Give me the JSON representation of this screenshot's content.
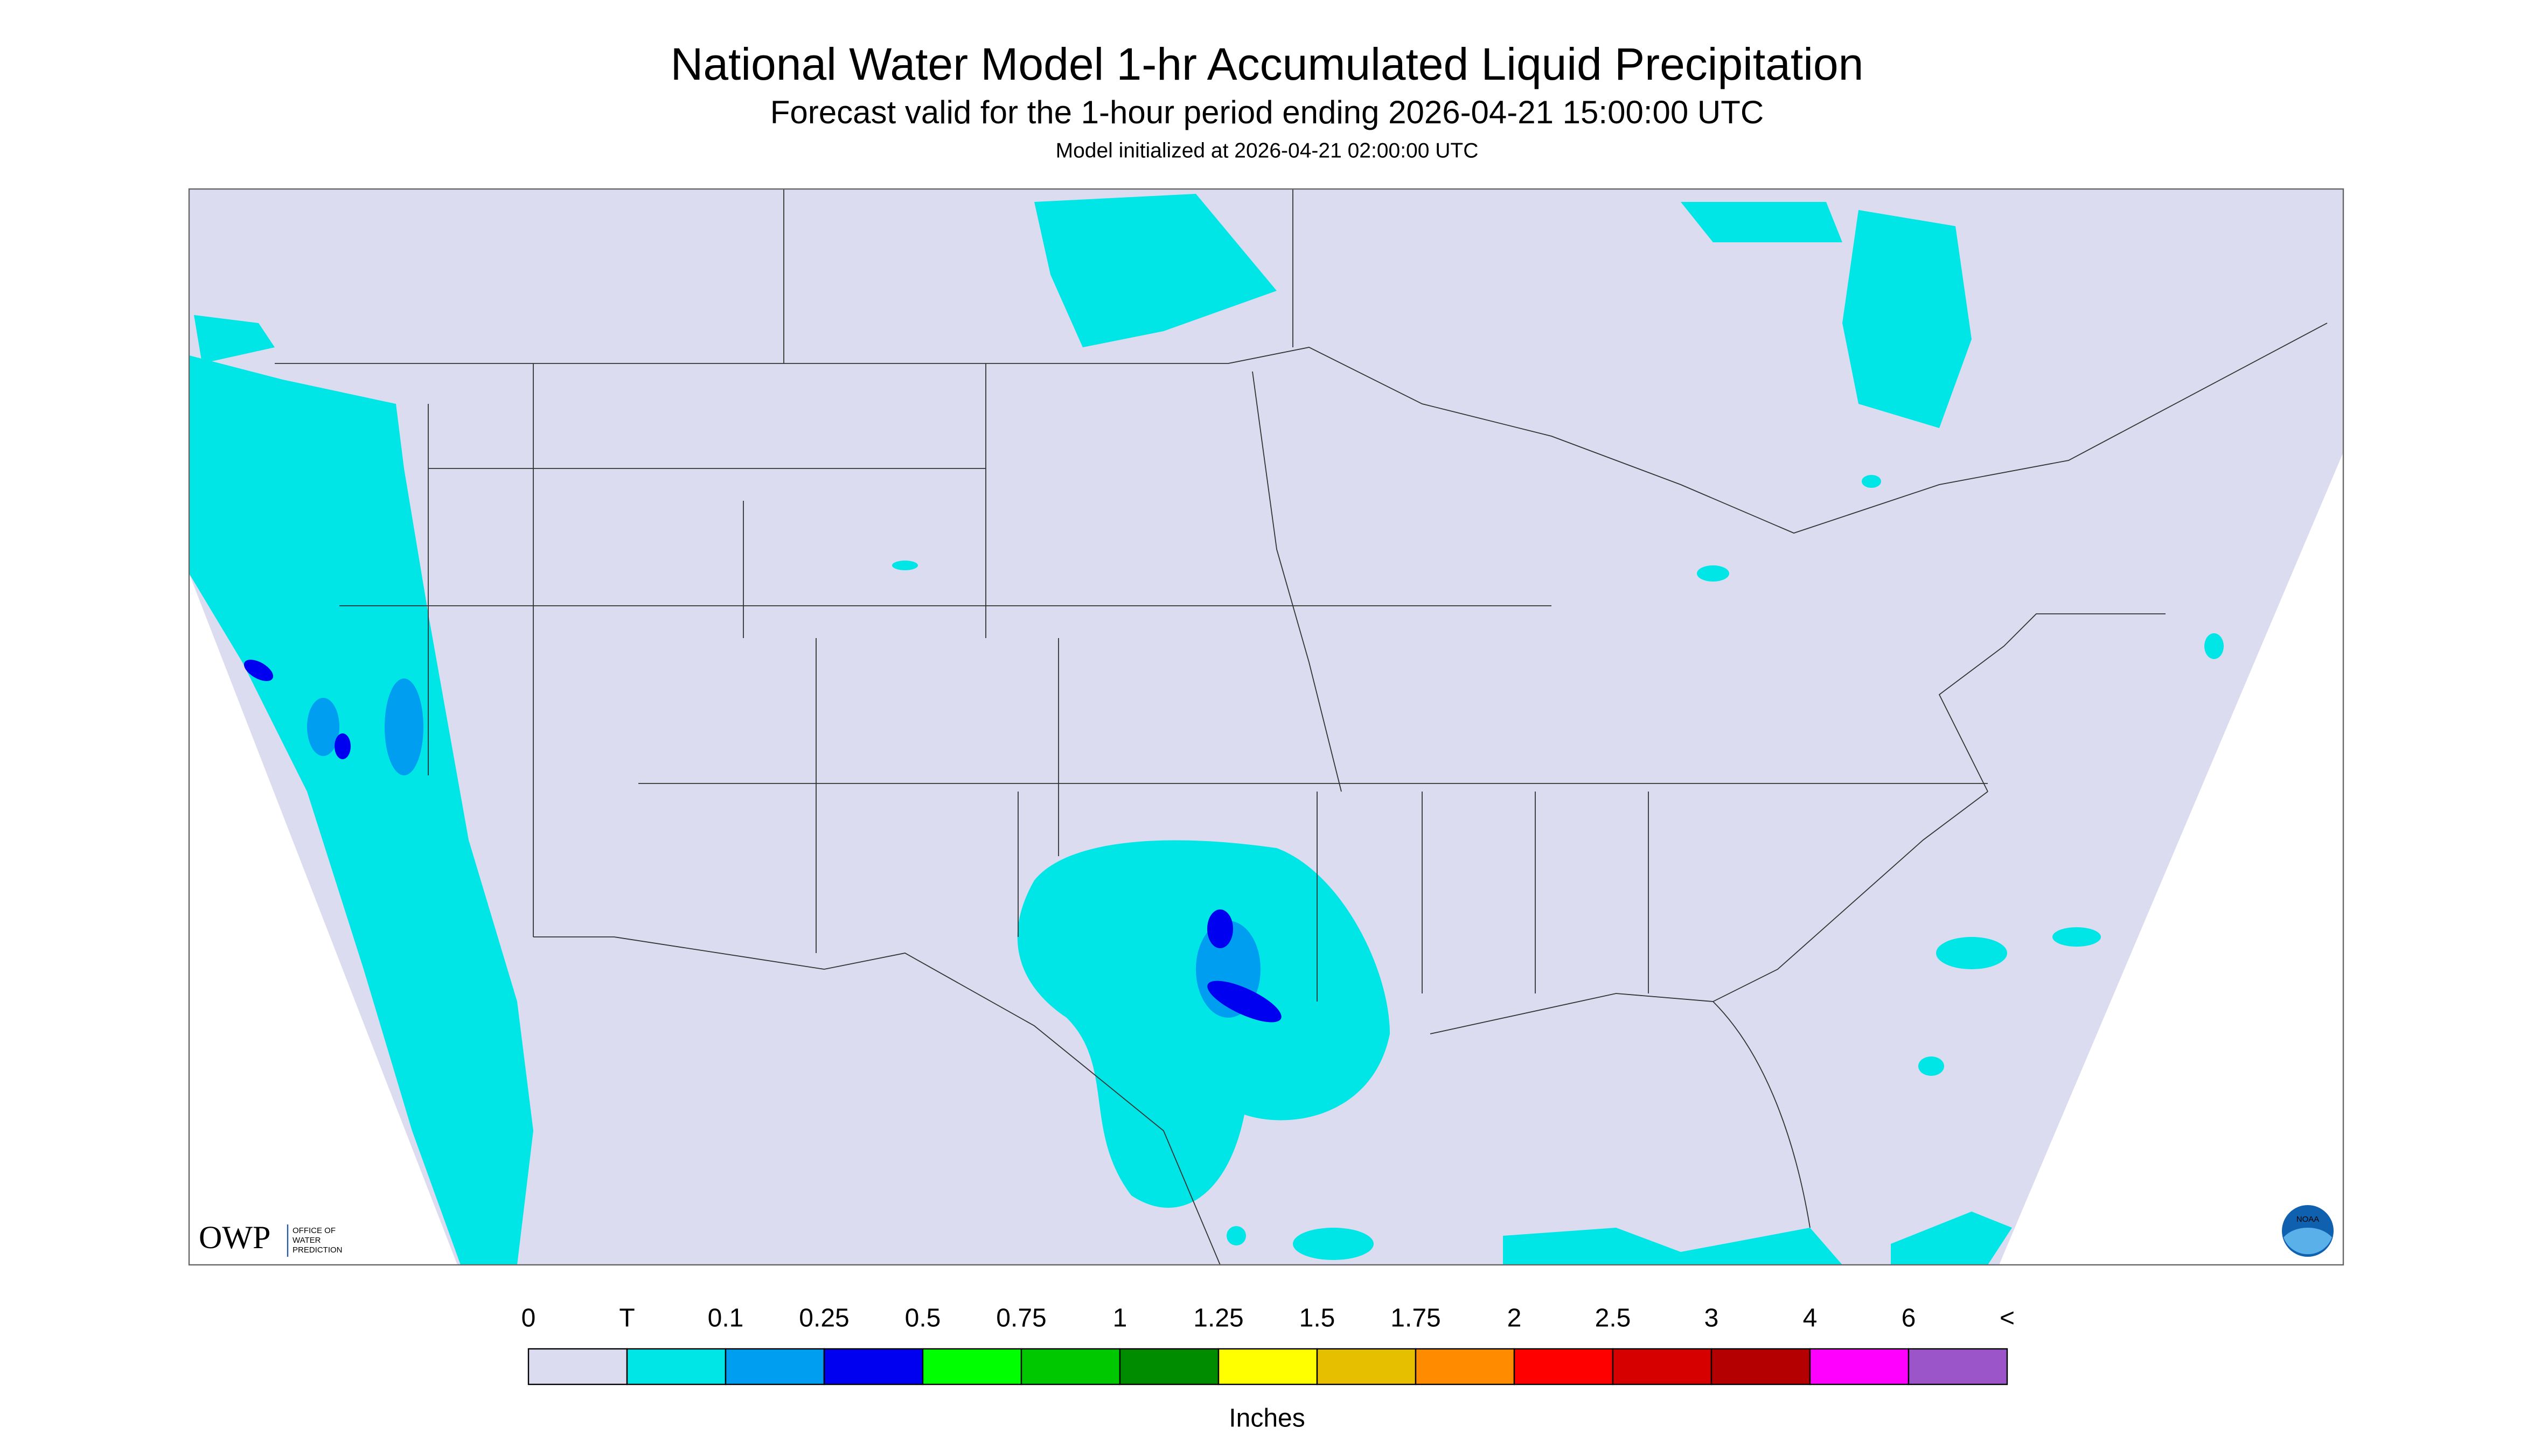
{
  "header": {
    "title": "National Water Model 1-hr Accumulated Liquid Precipitation",
    "subtitle": "Forecast valid for the 1-hour period ending 2026-04-21 15:00:00 UTC",
    "note": "Model initialized at 2026-04-21 02:00:00 UTC"
  },
  "logo": {
    "name": "OWP",
    "text": [
      "OFFICE OF",
      "WATER",
      "PREDICTION"
    ],
    "badge": "NOAA"
  },
  "legend": {
    "labels": [
      "0",
      "T",
      "0.1",
      "0.25",
      "0.5",
      "0.75",
      "1",
      "1.25",
      "1.5",
      "1.75",
      "2",
      "2.5",
      "3",
      "4",
      "6",
      "<"
    ],
    "colors": [
      "#dcdcf0",
      "#00e6e6",
      "#009ef0",
      "#0000f0",
      "#00ff00",
      "#00c800",
      "#008c00",
      "#ffff00",
      "#e6c000",
      "#ff8c00",
      "#ff0000",
      "#d70000",
      "#b40000",
      "#ff00ff",
      "#9b55c8"
    ],
    "unit": "Inches"
  }
}
